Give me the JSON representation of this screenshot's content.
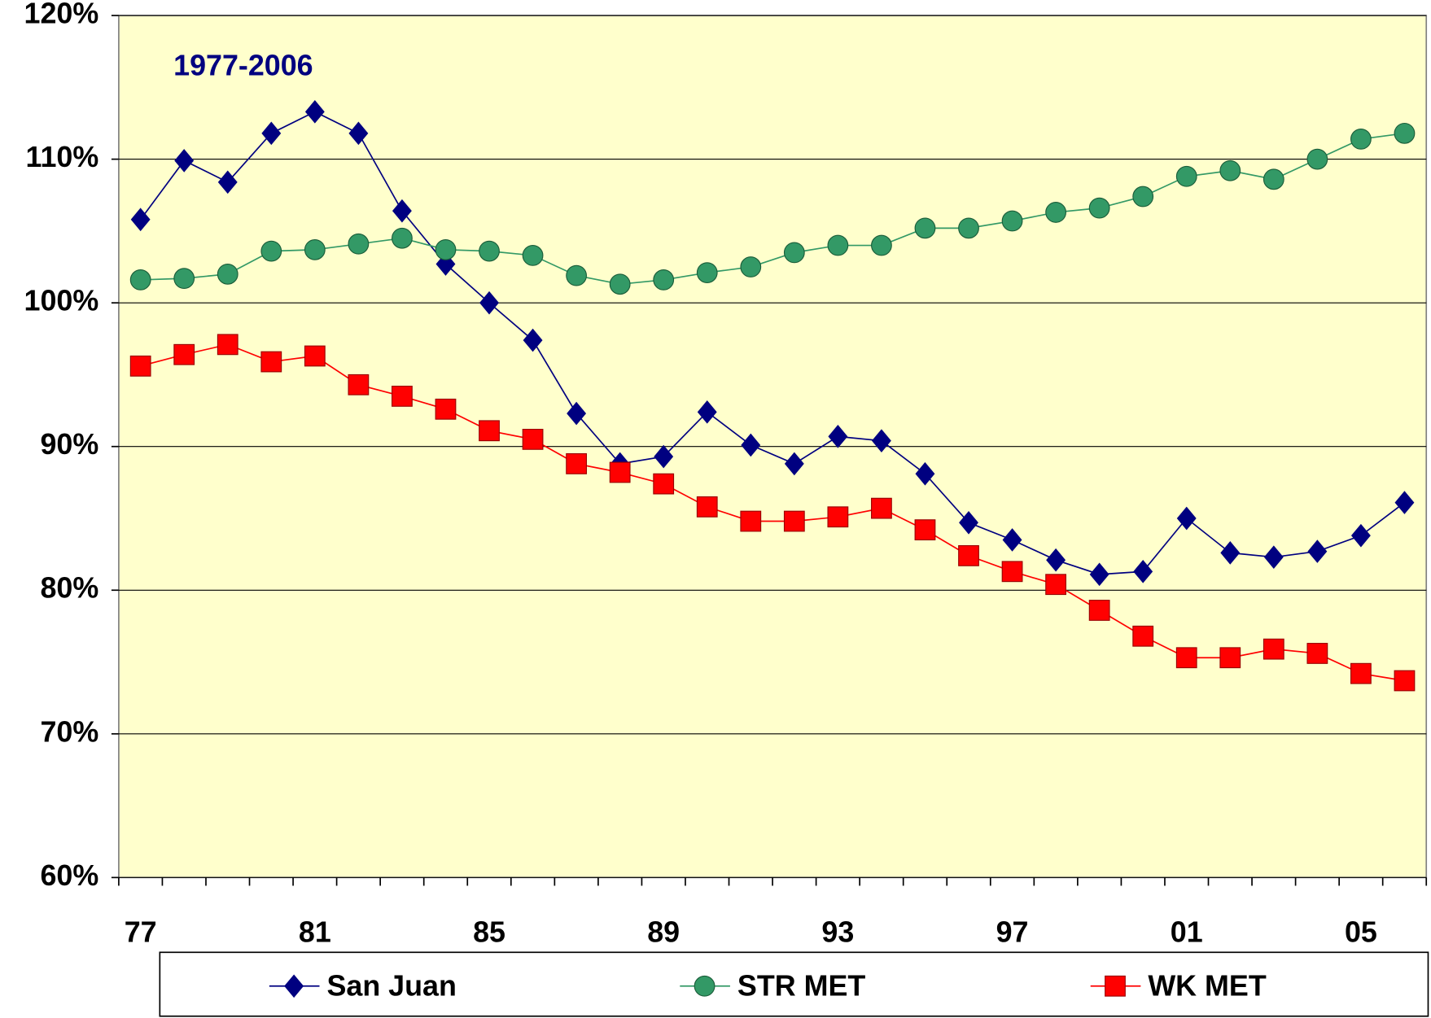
{
  "chart_data": {
    "type": "line",
    "annotation": "1977-2006",
    "categories": [
      "77",
      null,
      null,
      null,
      "81",
      null,
      null,
      null,
      "85",
      null,
      null,
      null,
      "89",
      null,
      null,
      null,
      "93",
      null,
      null,
      null,
      "97",
      null,
      null,
      null,
      "01",
      null,
      null,
      null,
      "05",
      null
    ],
    "series": [
      {
        "name": "San Juan",
        "color": "#000080",
        "marker": "diamond",
        "values": [
          105.8,
          109.9,
          108.4,
          111.8,
          113.3,
          111.8,
          106.4,
          102.7,
          100.0,
          97.4,
          92.3,
          88.8,
          89.3,
          92.4,
          90.1,
          88.8,
          90.7,
          90.4,
          88.1,
          84.7,
          83.5,
          82.1,
          81.1,
          81.3,
          85.0,
          82.6,
          82.3,
          82.7,
          83.8,
          86.1
        ]
      },
      {
        "name": "STR MET",
        "color": "#339966",
        "marker": "circle",
        "values": [
          101.6,
          101.7,
          102.0,
          103.6,
          103.7,
          104.1,
          104.5,
          103.7,
          103.6,
          103.3,
          101.9,
          101.3,
          101.6,
          102.1,
          102.5,
          103.5,
          104.0,
          104.0,
          105.2,
          105.2,
          105.7,
          106.3,
          106.6,
          107.4,
          108.8,
          109.2,
          108.6,
          110.0,
          111.4,
          111.8
        ]
      },
      {
        "name": "WK MET",
        "color": "#ff0000",
        "marker": "square",
        "values": [
          95.6,
          96.4,
          97.1,
          95.9,
          96.3,
          94.3,
          93.5,
          92.6,
          91.1,
          90.5,
          88.8,
          88.2,
          87.4,
          85.8,
          84.8,
          84.8,
          85.1,
          85.7,
          84.2,
          82.4,
          81.3,
          80.4,
          78.6,
          76.8,
          75.3,
          75.3,
          75.9,
          75.6,
          74.2,
          73.7
        ]
      }
    ],
    "ylim": [
      60,
      120
    ],
    "yticks": [
      {
        "value": 60,
        "label": "60%"
      },
      {
        "value": 70,
        "label": "70%"
      },
      {
        "value": 80,
        "label": "80%"
      },
      {
        "value": 90,
        "label": "90%"
      },
      {
        "value": 100,
        "label": "100%"
      },
      {
        "value": 110,
        "label": "110%"
      },
      {
        "value": 120,
        "label": "120%"
      }
    ],
    "grid": true,
    "legend": "bottom",
    "background": "#ffffcc"
  }
}
